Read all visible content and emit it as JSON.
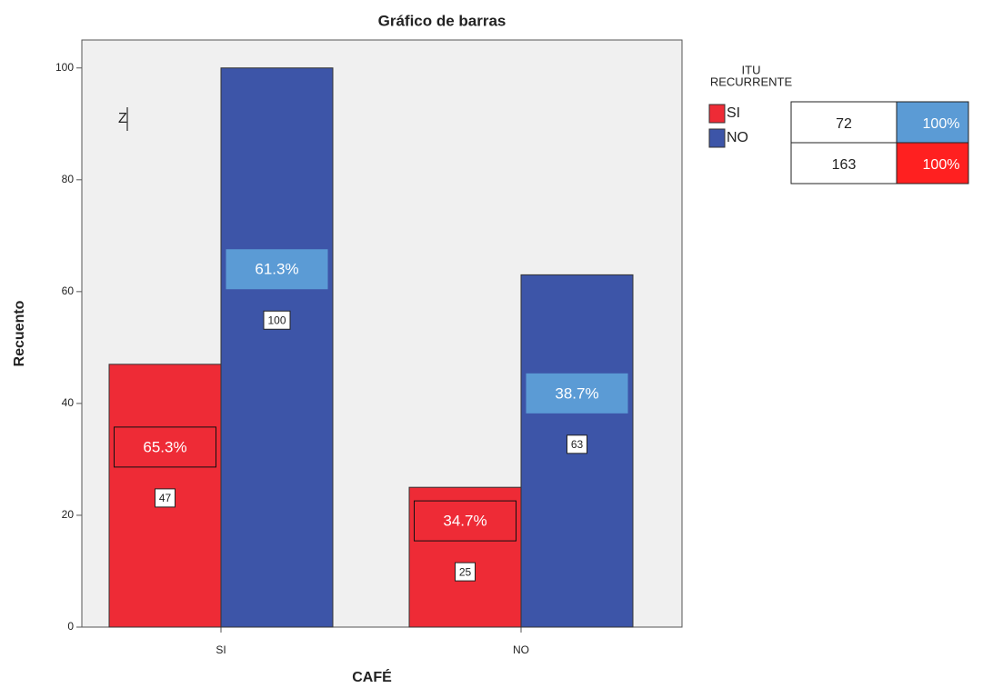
{
  "chart_data": {
    "type": "bar",
    "title": "Gráfico de barras",
    "x_label": "CAFÉ",
    "y_label": "Recuento",
    "annotation": "Z",
    "categories": [
      "SI",
      "NO"
    ],
    "series": [
      {
        "name": "SI",
        "color": "#ee2b36",
        "values": [
          47,
          25
        ],
        "percent_labels": [
          "65.3%",
          "34.7%"
        ]
      },
      {
        "name": "NO",
        "color": "#3d55a8",
        "values": [
          100,
          63
        ],
        "percent_labels": [
          "61.3%",
          "38.7%"
        ]
      }
    ],
    "ylim": [
      0,
      105
    ],
    "yticks": [
      0,
      20,
      40,
      60,
      80,
      100
    ],
    "legend_title": [
      "ITU",
      "RECURRENTE"
    ],
    "legend_position": "right",
    "side_table": {
      "rows": [
        [
          "72",
          "100%"
        ],
        [
          "163",
          "100%"
        ]
      ],
      "colors": [
        "#5b9bd5",
        "#ff2020"
      ]
    }
  }
}
